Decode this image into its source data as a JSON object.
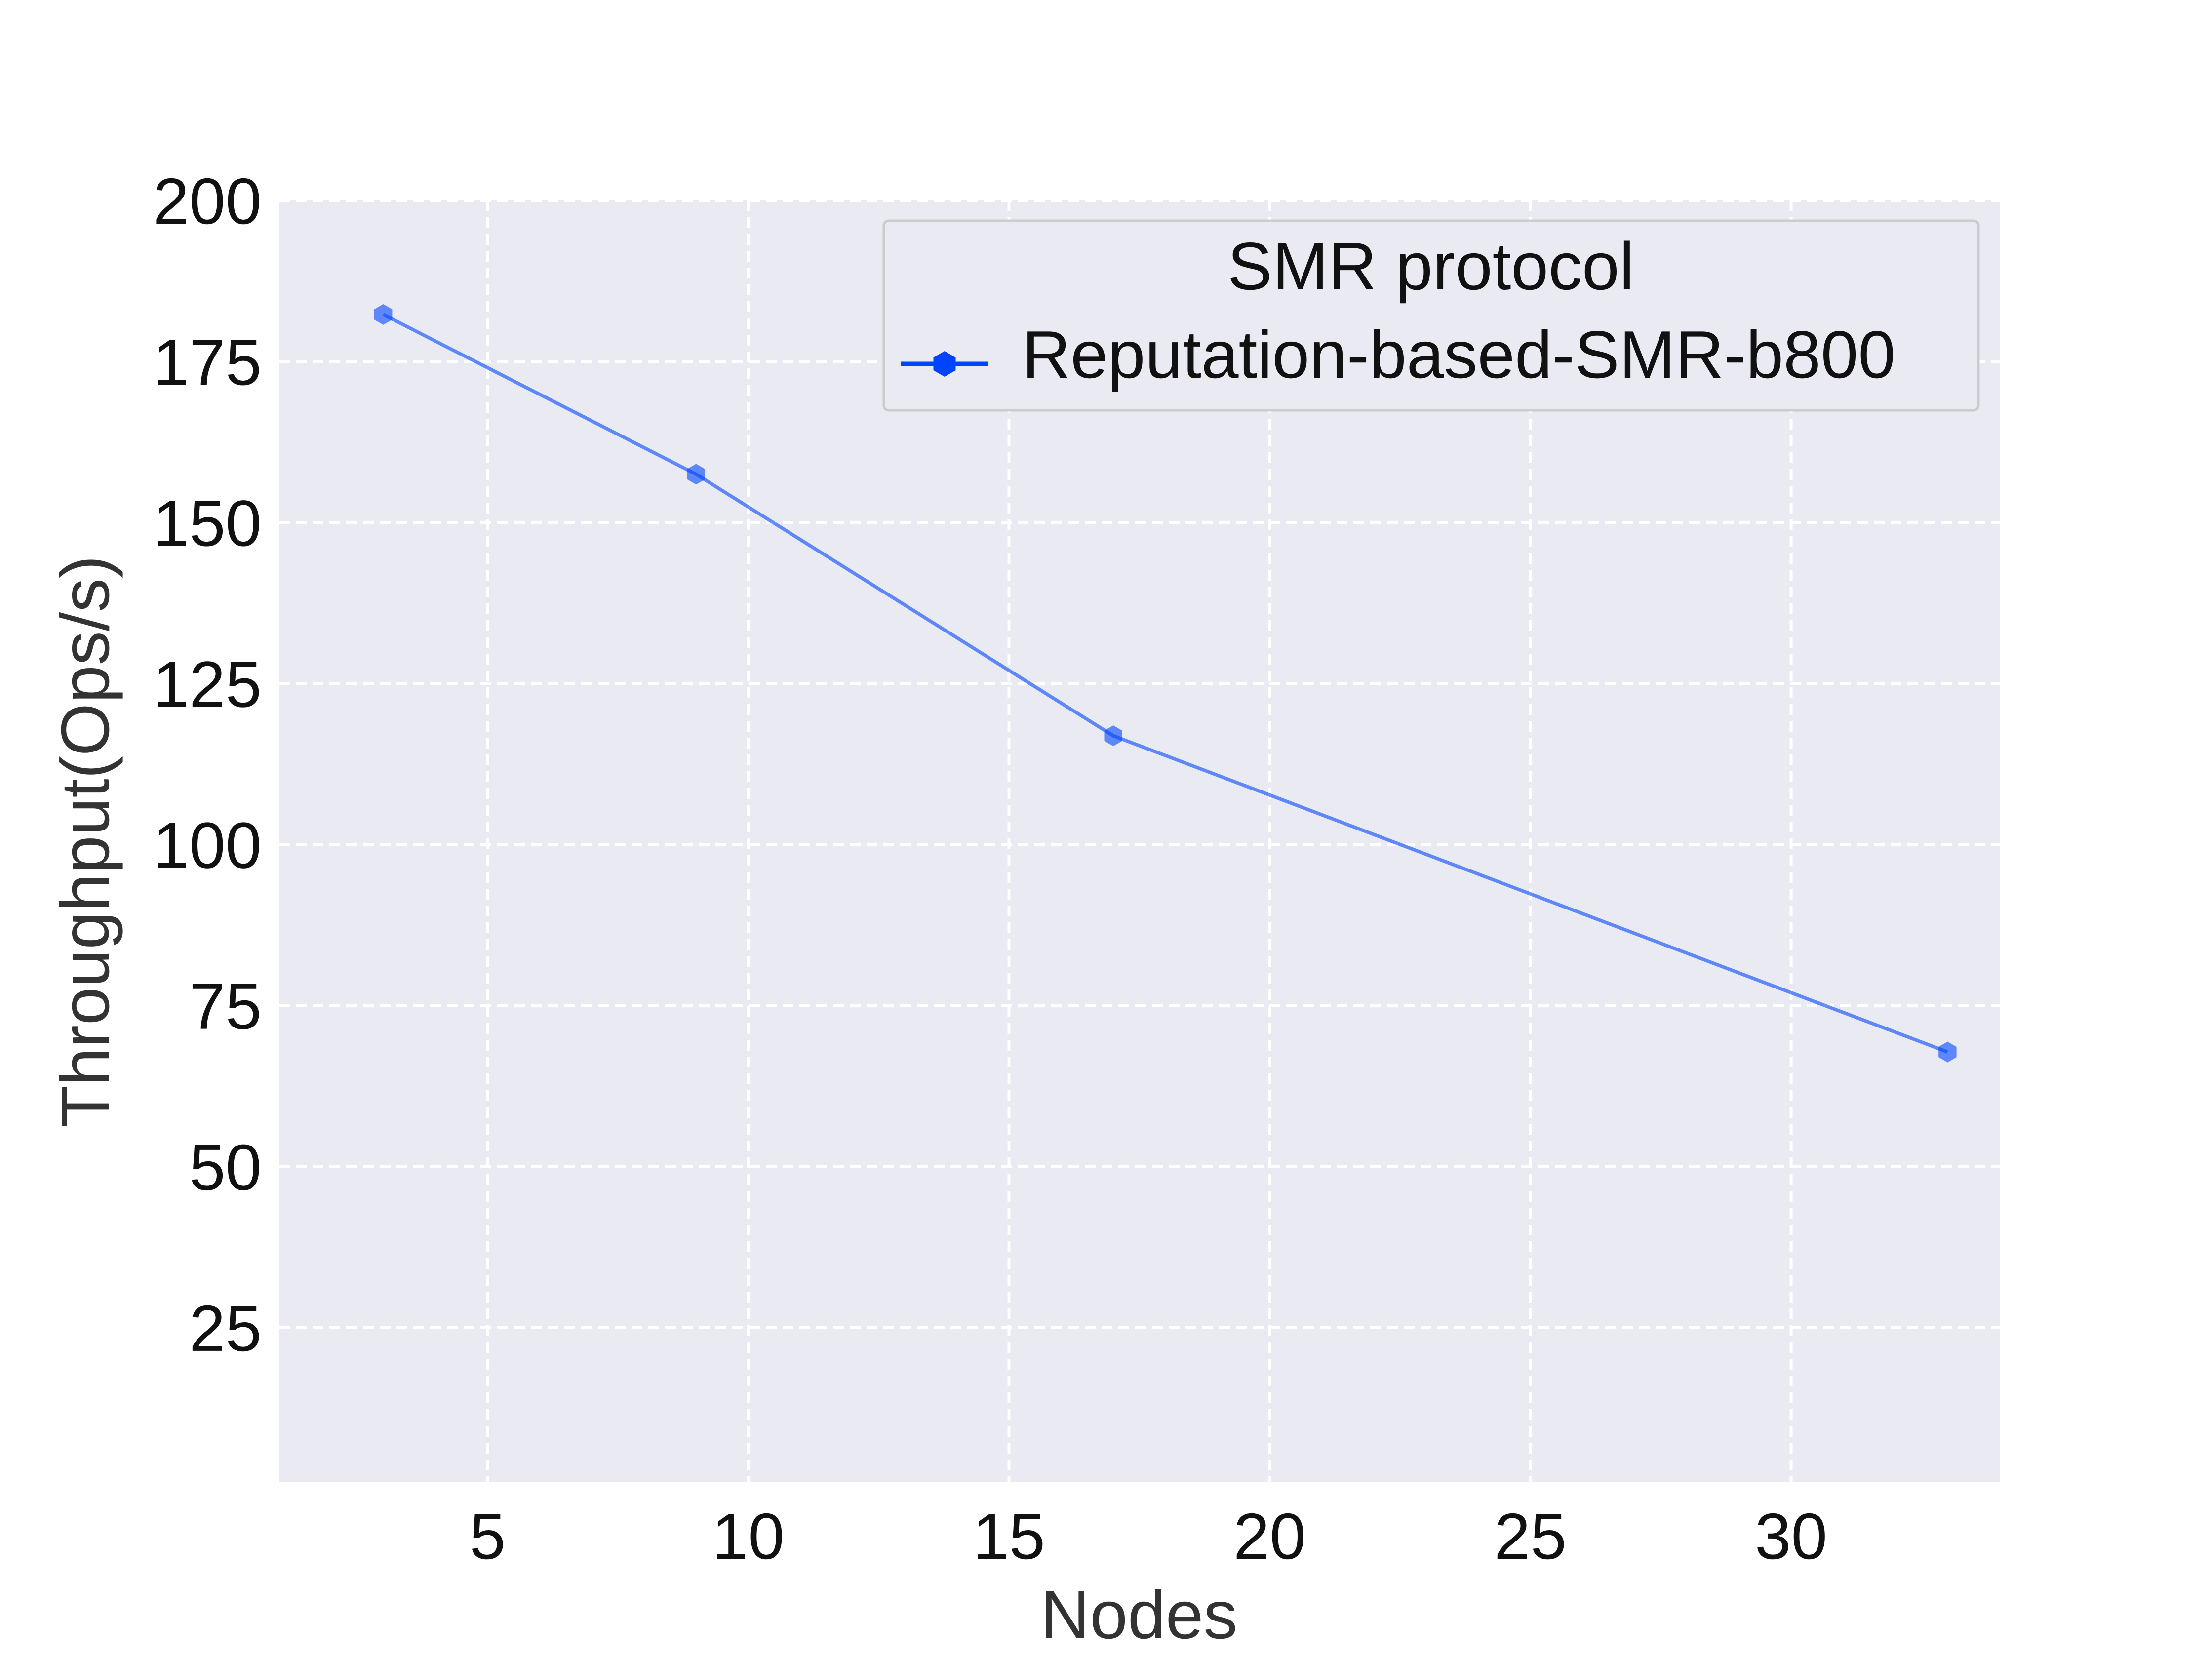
{
  "chart_data": {
    "type": "line",
    "x": [
      3,
      9,
      17,
      33
    ],
    "series": [
      {
        "name": "Reputation-based-SMR-b800",
        "values": [
          182.3,
          157.5,
          116.9,
          67.8
        ],
        "color": "#0044ff"
      }
    ],
    "xlabel": "Nodes",
    "ylabel": "Throughput(Ops/s)",
    "xlim": [
      1,
      34
    ],
    "ylim": [
      1,
      200
    ],
    "xticks": [
      5,
      10,
      15,
      20,
      25,
      30
    ],
    "yticks": [
      25,
      50,
      75,
      100,
      125,
      150,
      175,
      200
    ],
    "grid": true,
    "legend": {
      "title": "SMR protocol",
      "placement": "top-right"
    },
    "colors": {
      "plot_background": "#eaeaf2",
      "grid": "#ffffff",
      "line": "#0044ff"
    }
  }
}
